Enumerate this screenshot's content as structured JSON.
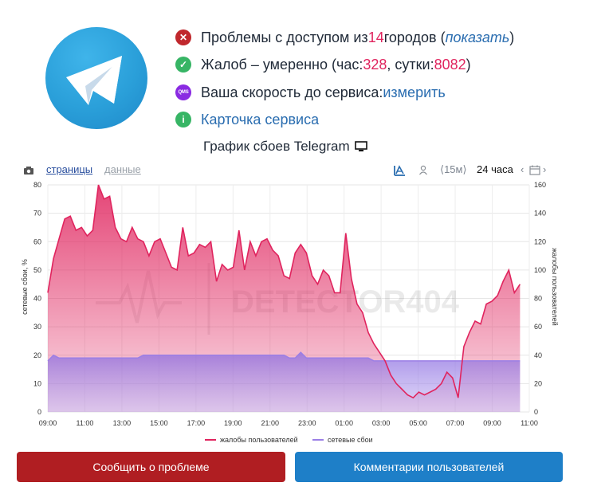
{
  "status": {
    "access": {
      "prefix": "Проблемы с доступом из ",
      "count": "14",
      "suffix": " городов (",
      "link": "показать",
      "close": ")"
    },
    "complaints": {
      "prefix": "Жалоб – умеренно (час: ",
      "hour": "328",
      "mid": ", сутки: ",
      "day": "8082",
      "close": ")"
    },
    "speed": {
      "badge": "QMS",
      "prefix": "Ваша скорость до сервиса: ",
      "link": "измерить"
    },
    "card": {
      "link": "Карточка сервиса"
    }
  },
  "chart_title": "График сбоев Telegram",
  "toolbar": {
    "tab_pages": "страницы",
    "tab_data": "данные",
    "range_short": "15м",
    "range_full": "24 часа"
  },
  "chart_data": {
    "type": "area",
    "watermark": "DETECTOR404",
    "x_ticks": [
      "09:00",
      "11:00",
      "13:00",
      "15:00",
      "17:00",
      "19:00",
      "21:00",
      "23:00",
      "01:00",
      "03:00",
      "05:00",
      "07:00",
      "09:00",
      "11:00"
    ],
    "y_left": {
      "label": "сетевые сбои, %",
      "ticks": [
        "0",
        "10",
        "20",
        "30",
        "40",
        "50",
        "60",
        "70",
        "80"
      ],
      "range": [
        0,
        80
      ]
    },
    "y_right": {
      "label": "жалобы пользователей",
      "ticks": [
        "0",
        "20",
        "40",
        "60",
        "80",
        "100",
        "120",
        "140",
        "160"
      ],
      "range": [
        0,
        160
      ]
    },
    "series": [
      {
        "name": "жалобы пользователей",
        "color": "#e0245e",
        "axis": "right",
        "values": [
          84,
          108,
          122,
          136,
          138,
          128,
          130,
          124,
          128,
          160,
          150,
          152,
          130,
          122,
          120,
          130,
          122,
          120,
          110,
          120,
          122,
          112,
          102,
          100,
          130,
          110,
          112,
          118,
          116,
          120,
          92,
          104,
          100,
          102,
          128,
          100,
          120,
          110,
          120,
          122,
          114,
          110,
          96,
          94,
          112,
          118,
          112,
          96,
          90,
          100,
          96,
          84,
          84,
          126,
          94,
          76,
          70,
          56,
          48,
          42,
          36,
          26,
          20,
          16,
          12,
          10,
          14,
          12,
          14,
          16,
          20,
          28,
          24,
          10,
          46,
          56,
          64,
          62,
          76,
          78,
          82,
          92,
          100,
          84,
          90
        ]
      },
      {
        "name": "сетевые сбои",
        "color": "#9b7fe6",
        "axis": "left",
        "values": [
          18,
          20,
          19,
          19,
          19,
          19,
          19,
          19,
          19,
          19,
          19,
          19,
          19,
          19,
          19,
          19,
          19,
          20,
          20,
          20,
          20,
          20,
          20,
          20,
          20,
          20,
          20,
          20,
          20,
          20,
          20,
          20,
          20,
          20,
          20,
          20,
          20,
          20,
          20,
          20,
          20,
          20,
          20,
          19,
          19,
          21,
          19,
          19,
          19,
          19,
          19,
          19,
          19,
          19,
          19,
          19,
          19,
          19,
          18,
          18,
          18,
          18,
          18,
          18,
          18,
          18,
          18,
          18,
          18,
          18,
          18,
          18,
          18,
          18,
          18,
          18,
          18,
          18,
          18,
          18,
          18,
          18,
          18,
          18,
          18
        ]
      }
    ]
  },
  "buttons": {
    "report": "Сообщить о проблеме",
    "comments": "Комментарии пользователей"
  }
}
